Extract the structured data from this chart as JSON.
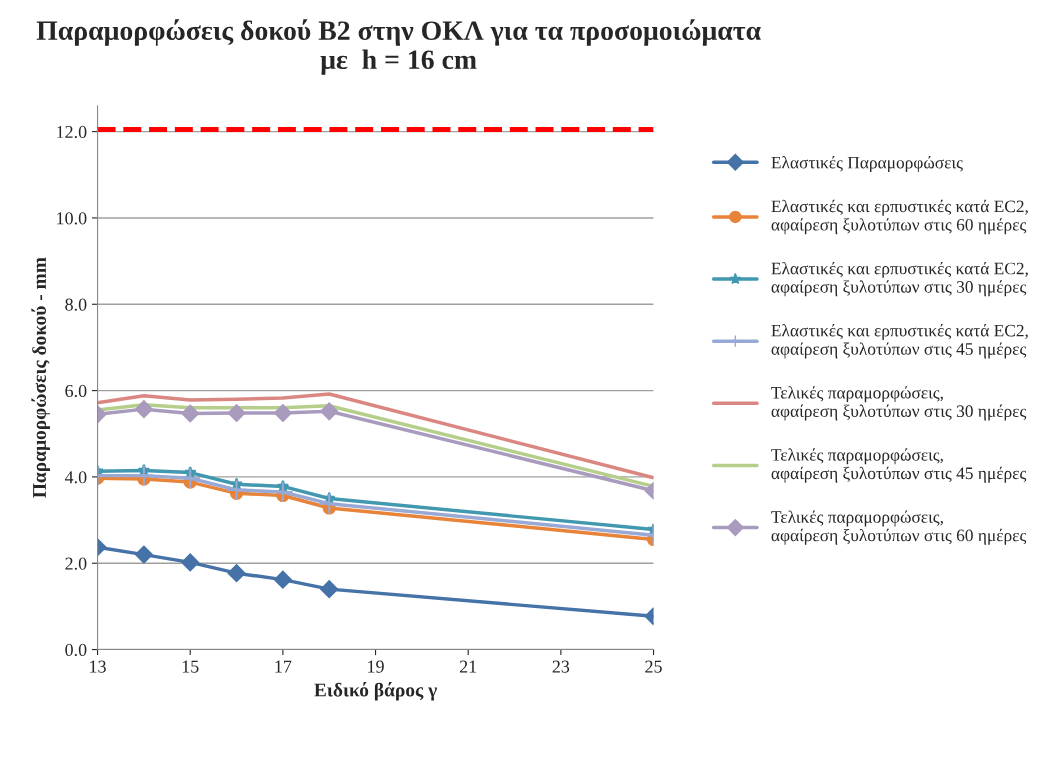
{
  "chart_data": {
    "type": "line",
    "title": "Παραμορφώσεις δοκού Β2 στην ΟΚΛ για τα προσομοιώματα\nμε  h = 16 cm",
    "xlabel": "Ειδικό βάρος γ",
    "ylabel": "Παραμορφώσεις δοκού - mm",
    "x": [
      13,
      14,
      15,
      16,
      17,
      18,
      25
    ],
    "series": [
      {
        "name": "Ελαστικές Παραμορφώσεις",
        "color": "#4572a7",
        "marker": "diamond",
        "values": [
          2.37,
          2.2,
          2.02,
          1.77,
          1.62,
          1.4,
          0.77
        ]
      },
      {
        "name": "Ελαστικές και ερπυστικές κατά EC2, αφαίρεση ξυλοτύπων στις 60 ημέρες",
        "color": "#e8833a",
        "marker": "circle",
        "values": [
          3.97,
          3.95,
          3.88,
          3.62,
          3.57,
          3.28,
          2.55
        ]
      },
      {
        "name": "Ελαστικές και ερπυστικές κατά EC2, αφαίρεση ξυλοτύπων στις 30 ημέρες",
        "color": "#4198af",
        "marker": "star",
        "values": [
          4.13,
          4.15,
          4.1,
          3.83,
          3.78,
          3.5,
          2.78
        ]
      },
      {
        "name": "Ελαστικές και ερπυστικές κατά EC2, αφαίρεση ξυλοτύπων στις 45 ημέρες",
        "color": "#98a9d6",
        "marker": "cross",
        "values": [
          4.03,
          4.03,
          3.97,
          3.7,
          3.65,
          3.38,
          2.65
        ]
      },
      {
        "name": "Τελικές παραμορφώσεις, αφαίρεση ξυλοτύπων στις 30 ημέρες",
        "color": "#da8782",
        "marker": "none",
        "values": [
          5.72,
          5.88,
          5.78,
          5.8,
          5.83,
          5.92,
          3.98
        ]
      },
      {
        "name": "Τελικές παραμορφώσεις, αφαίρεση ξυλοτύπων στις 45 ημέρες",
        "color": "#b5cf8a",
        "marker": "none",
        "values": [
          5.55,
          5.67,
          5.6,
          5.6,
          5.6,
          5.65,
          3.78
        ]
      },
      {
        "name": "Τελικές παραμορφώσεις, αφαίρεση ξυλοτύπων στις 60 ημέρες",
        "color": "#a99bbd",
        "marker": "diamond",
        "values": [
          5.45,
          5.57,
          5.47,
          5.48,
          5.48,
          5.52,
          3.68
        ]
      }
    ],
    "ref_lines": [
      {
        "axis": "y",
        "value": 12.05,
        "color": "#ff0000",
        "line_style": "dashed"
      }
    ],
    "xlim": [
      13,
      25
    ],
    "xticks": [
      13,
      15,
      17,
      19,
      21,
      23,
      25
    ],
    "ylim": [
      0,
      12.6
    ],
    "yticks": [
      {
        "value": 0,
        "label": "0.0"
      },
      {
        "value": 2,
        "label": "2.0"
      },
      {
        "value": 4,
        "label": "4.0"
      },
      {
        "value": 6,
        "label": "6.0"
      },
      {
        "value": 8,
        "label": "8.0"
      },
      {
        "value": 10,
        "label": "10.0"
      },
      {
        "value": 12,
        "label": "12.0"
      }
    ],
    "grid": "y",
    "legend": "right"
  }
}
